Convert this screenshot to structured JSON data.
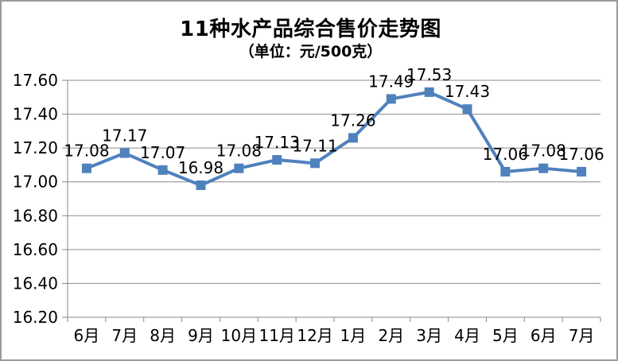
{
  "chart": {
    "title": "11种水产品综合售价走势图",
    "subtitle": "（单位：元/500克）"
  },
  "chart_data": {
    "type": "line",
    "title": "11种水产品综合售价走势图",
    "subtitle": "（单位：元/500克）",
    "categories": [
      "6月",
      "7月",
      "8月",
      "9月",
      "10月",
      "11月",
      "12月",
      "1月",
      "2月",
      "3月",
      "4月",
      "5月",
      "6月",
      "7月"
    ],
    "values": [
      17.08,
      17.17,
      17.07,
      16.98,
      17.08,
      17.13,
      17.11,
      17.26,
      17.49,
      17.53,
      17.43,
      17.06,
      17.08,
      17.06
    ],
    "data_labels": [
      "17.08",
      "17.17",
      "17.07",
      "16.98",
      "17.08",
      "17.13",
      "17.11",
      "17.26",
      "17.49",
      "17.53",
      "17.43",
      "17.06",
      "17.08",
      "17.06"
    ],
    "xlabel": "",
    "ylabel": "",
    "ylim": [
      16.2,
      17.6
    ],
    "ytick_step": 0.2,
    "ytick_labels": [
      "16.20",
      "16.40",
      "16.60",
      "16.80",
      "17.00",
      "17.20",
      "17.40",
      "17.60"
    ],
    "grid": true,
    "legend": "none",
    "series_color": "#4F81BD",
    "axis_color": "#8A8A8A",
    "label_color": "#000000",
    "background_color": "#FFFFFF",
    "border_color": "#9B9B9B"
  }
}
